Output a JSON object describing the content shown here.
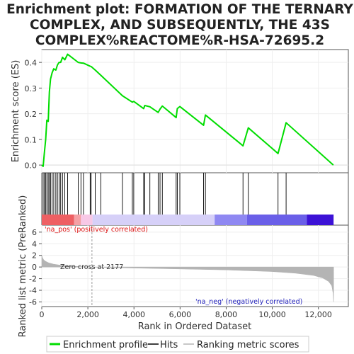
{
  "chart_data": {
    "type": "line",
    "title_lines": [
      "Enrichment plot: FORMATION OF THE TERNARY",
      "COMPLEX, AND SUBSEQUENTLY, THE 43S",
      "COMPLEX%REACTOME%R-HSA-72695.2"
    ],
    "ylabel_es": "Enrichment score (ES)",
    "ylabel_metric": "Ranked list metric (PreRanked)",
    "xlabel": "Rank in Ordered Dataset",
    "xlim": [
      0,
      13300
    ],
    "es_ylim": [
      -0.03,
      0.45
    ],
    "metric_ylim": [
      -6.8,
      7.2
    ],
    "es_ticks": [
      "0.0",
      "0.1",
      "0.2",
      "0.3",
      "0.4"
    ],
    "metric_ticks": [
      "-6",
      "-4",
      "-2",
      "0",
      "2",
      "4",
      "6"
    ],
    "x_ticks": [
      "0",
      "2,000",
      "4,000",
      "6,000",
      "8,000",
      "10,000",
      "12,000"
    ],
    "hits": [
      60,
      110,
      170,
      220,
      280,
      330,
      380,
      450,
      520,
      610,
      680,
      750,
      820,
      900,
      1000,
      1120,
      1580,
      1700,
      1810,
      2100,
      2140,
      2320,
      2560,
      3500,
      3930,
      3990,
      4420,
      4470,
      4690,
      5050,
      5130,
      5230,
      5830,
      5880,
      5990,
      7020,
      7100,
      8730,
      8960,
      10250,
      10600
    ],
    "es_curve": [
      [
        0,
        0.0
      ],
      [
        60,
        -0.005
      ],
      [
        110,
        0.045
      ],
      [
        170,
        0.1
      ],
      [
        220,
        0.175
      ],
      [
        280,
        0.17
      ],
      [
        330,
        0.285
      ],
      [
        380,
        0.335
      ],
      [
        450,
        0.36
      ],
      [
        520,
        0.375
      ],
      [
        610,
        0.37
      ],
      [
        680,
        0.39
      ],
      [
        750,
        0.4
      ],
      [
        820,
        0.4
      ],
      [
        900,
        0.42
      ],
      [
        1000,
        0.41
      ],
      [
        1120,
        0.432
      ],
      [
        1580,
        0.4
      ],
      [
        1700,
        0.398
      ],
      [
        1810,
        0.397
      ],
      [
        2100,
        0.385
      ],
      [
        2140,
        0.384
      ],
      [
        2320,
        0.37
      ],
      [
        2560,
        0.35
      ],
      [
        3500,
        0.27
      ],
      [
        3930,
        0.245
      ],
      [
        3990,
        0.248
      ],
      [
        4420,
        0.22
      ],
      [
        4470,
        0.232
      ],
      [
        4690,
        0.227
      ],
      [
        5050,
        0.205
      ],
      [
        5130,
        0.218
      ],
      [
        5230,
        0.23
      ],
      [
        5830,
        0.185
      ],
      [
        5880,
        0.22
      ],
      [
        5990,
        0.228
      ],
      [
        7020,
        0.155
      ],
      [
        7100,
        0.195
      ],
      [
        8730,
        0.075
      ],
      [
        8960,
        0.145
      ],
      [
        10250,
        0.045
      ],
      [
        10600,
        0.165
      ],
      [
        12650,
        0.0
      ]
    ],
    "metric_curve": [
      [
        0,
        2.0
      ],
      [
        30,
        1.6
      ],
      [
        80,
        1.25
      ],
      [
        150,
        1.0
      ],
      [
        300,
        0.72
      ],
      [
        500,
        0.5
      ],
      [
        800,
        0.32
      ],
      [
        1200,
        0.18
      ],
      [
        1700,
        0.07
      ],
      [
        2177,
        0.0
      ],
      [
        3000,
        -0.1
      ],
      [
        4000,
        -0.18
      ],
      [
        6000,
        -0.33
      ],
      [
        8000,
        -0.5
      ],
      [
        10000,
        -0.78
      ],
      [
        11000,
        -1.05
      ],
      [
        11800,
        -1.45
      ],
      [
        12200,
        -1.9
      ],
      [
        12450,
        -2.5
      ],
      [
        12580,
        -3.2
      ],
      [
        12640,
        -4.5
      ],
      [
        12660,
        -6.0
      ]
    ],
    "heat_segments": [
      [
        0,
        1400,
        "#ee5f63"
      ],
      [
        1400,
        1700,
        "#f4a0a5"
      ],
      [
        1700,
        2200,
        "#f8c8e6"
      ],
      [
        2200,
        7500,
        "#d6d0f8"
      ],
      [
        7500,
        8900,
        "#8f88f2"
      ],
      [
        8900,
        11500,
        "#6a5fe8"
      ],
      [
        11500,
        12660,
        "#3c12d6"
      ]
    ],
    "zero_cross_rank": 2177,
    "zero_cross_label": "Zero cross at 2177",
    "na_pos_label": "'na_pos' (positively correlated)",
    "na_neg_label": "'na_neg' (negatively correlated)",
    "legend": [
      "Enrichment profile",
      "Hits",
      "Ranking metric scores"
    ],
    "colors": {
      "enrichment": "#00dd00",
      "hits": "#000000",
      "metric_fill": "#b4b4b4",
      "pos_label": "#dd1111",
      "neg_label": "#2222bb",
      "zero_line": "#9a9a9a",
      "grid": "#eeeeee"
    }
  }
}
